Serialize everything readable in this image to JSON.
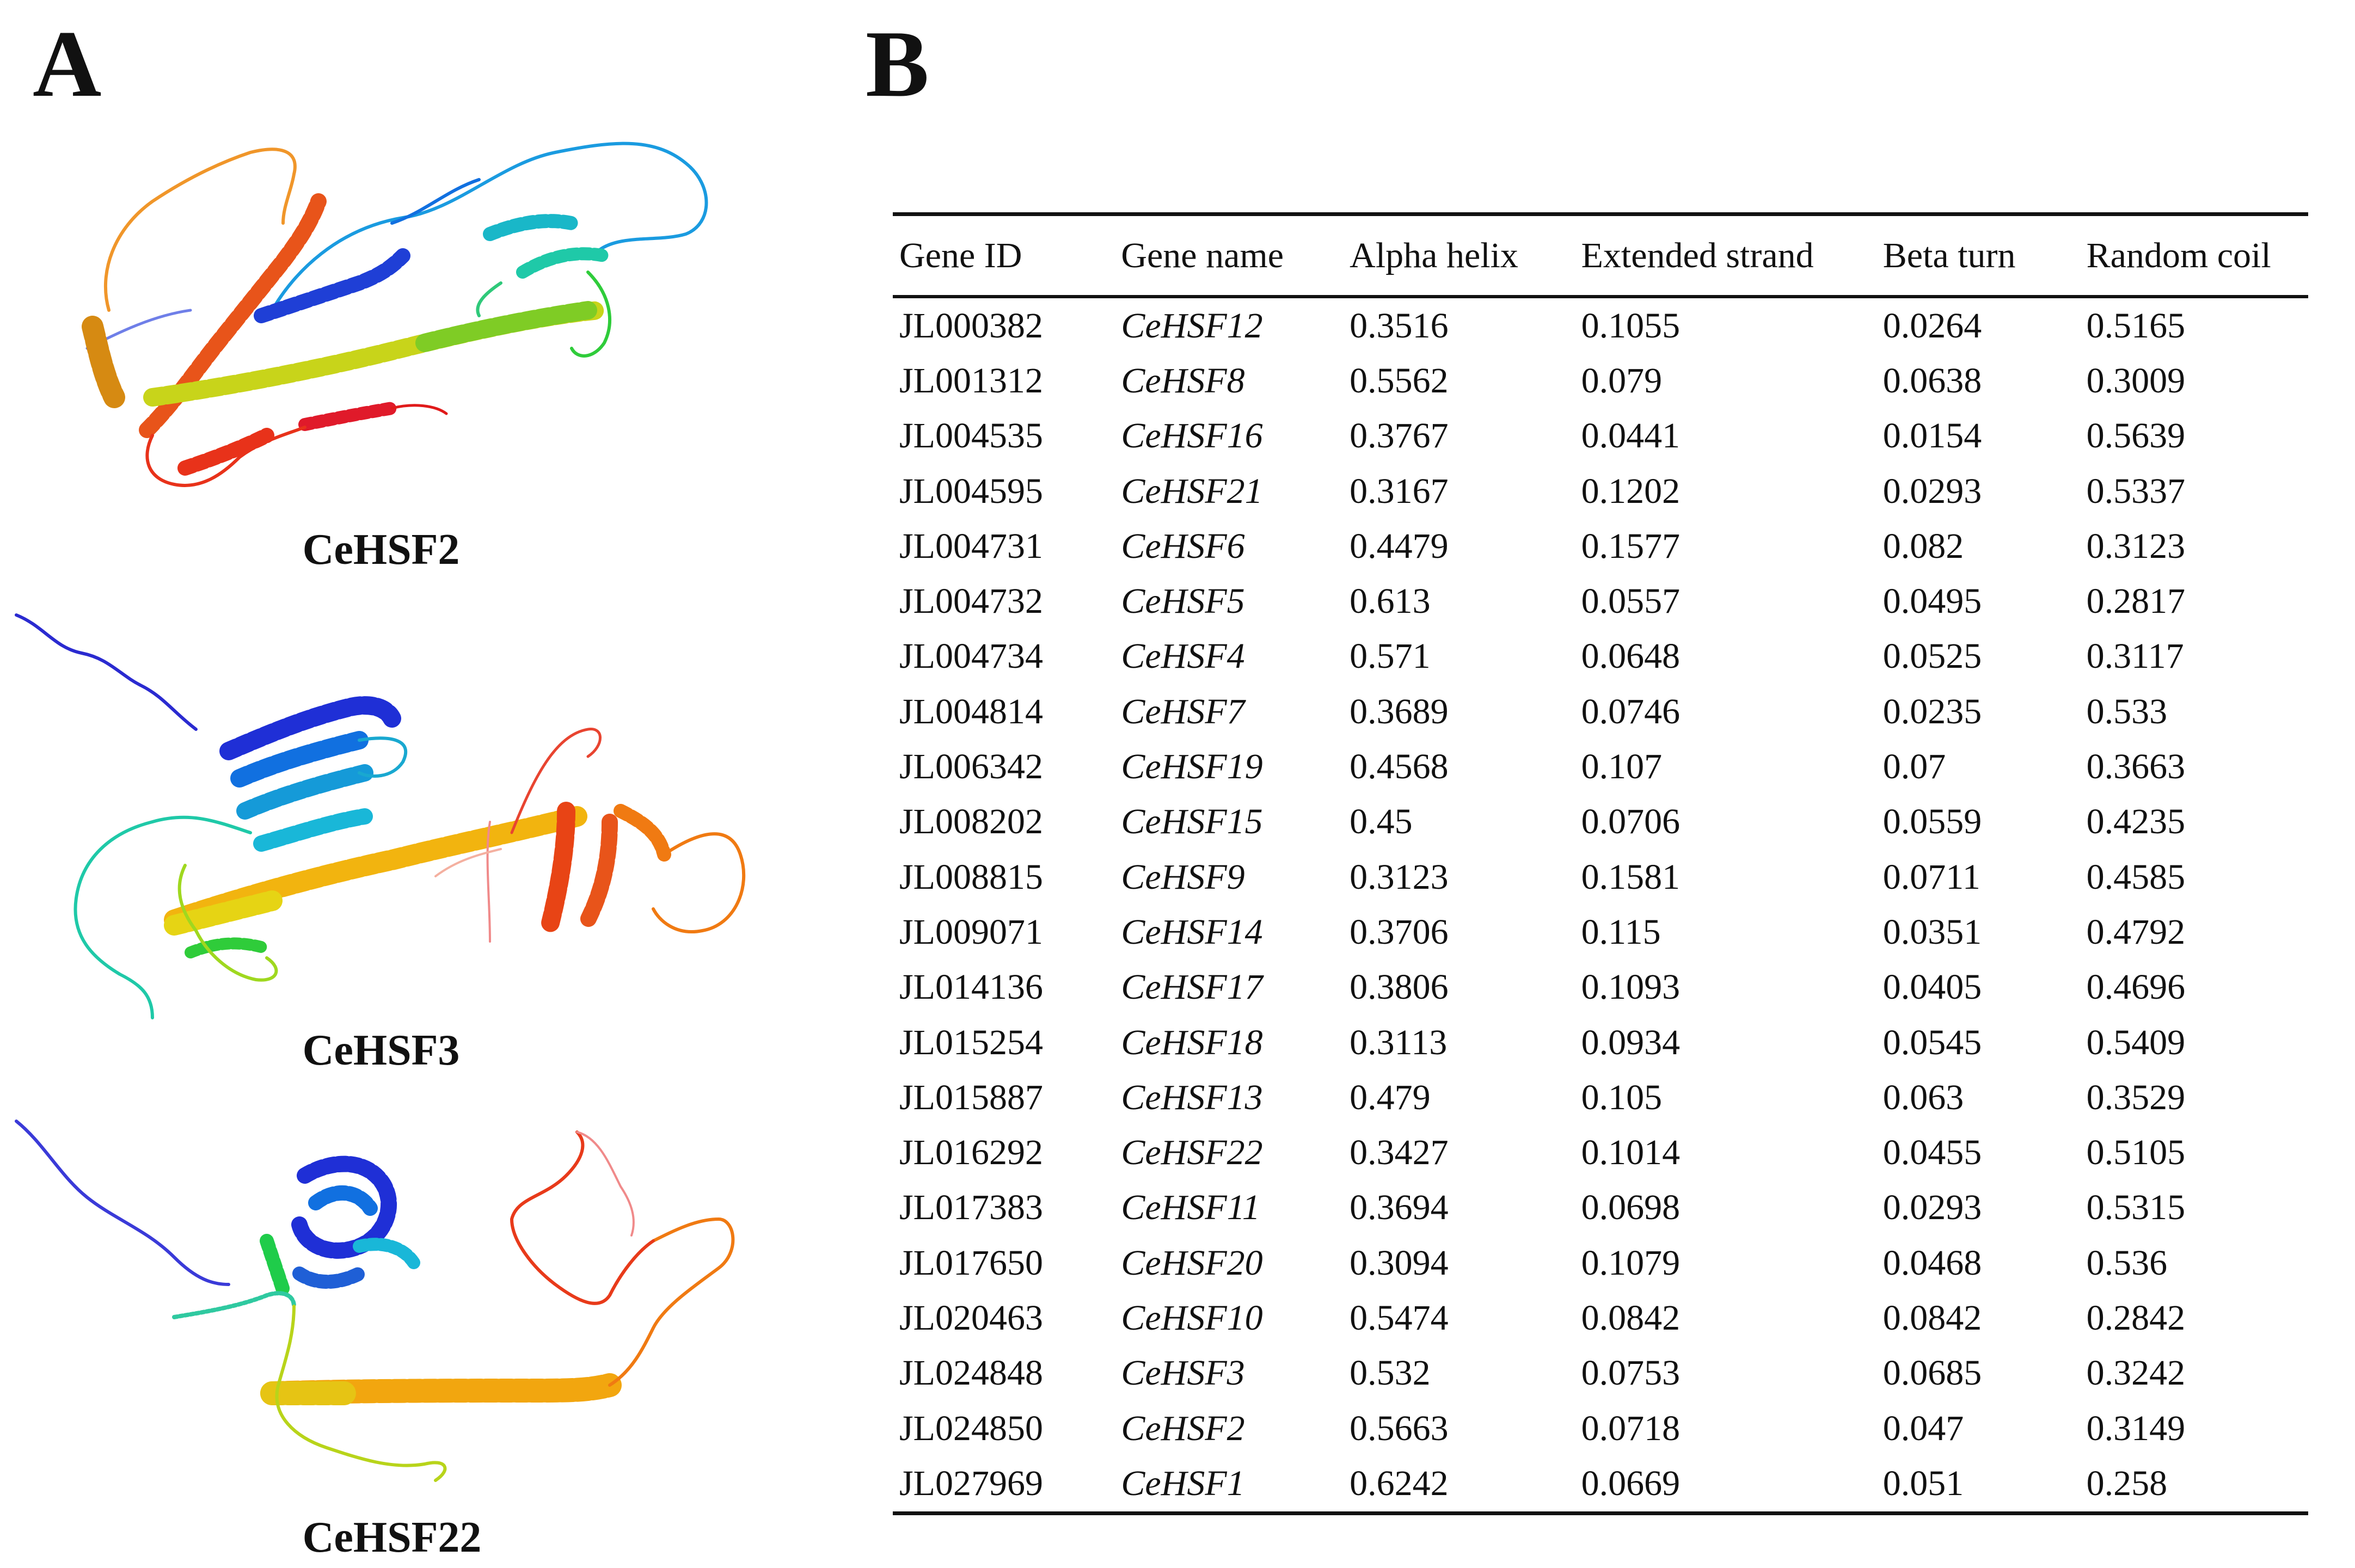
{
  "panel_a": {
    "label": "A",
    "structures": [
      {
        "caption": "CeHSF2"
      },
      {
        "caption": "CeHSF3"
      },
      {
        "caption": "CeHSF22"
      }
    ]
  },
  "panel_b": {
    "label": "B",
    "table": {
      "headers": [
        "Gene ID",
        "Gene name",
        "Alpha helix",
        "Extended strand",
        "Beta turn",
        "Random coil"
      ],
      "rows": [
        [
          "JL000382",
          "CeHSF12",
          "0.3516",
          "0.1055",
          "0.0264",
          "0.5165"
        ],
        [
          "JL001312",
          "CeHSF8",
          "0.5562",
          "0.079",
          "0.0638",
          "0.3009"
        ],
        [
          "JL004535",
          "CeHSF16",
          "0.3767",
          "0.0441",
          "0.0154",
          "0.5639"
        ],
        [
          "JL004595",
          "CeHSF21",
          "0.3167",
          "0.1202",
          "0.0293",
          "0.5337"
        ],
        [
          "JL004731",
          "CeHSF6",
          "0.4479",
          "0.1577",
          "0.082",
          "0.3123"
        ],
        [
          "JL004732",
          "CeHSF5",
          "0.613",
          "0.0557",
          "0.0495",
          "0.2817"
        ],
        [
          "JL004734",
          "CeHSF4",
          "0.571",
          "0.0648",
          "0.0525",
          "0.3117"
        ],
        [
          "JL004814",
          "CeHSF7",
          "0.3689",
          "0.0746",
          "0.0235",
          "0.533"
        ],
        [
          "JL006342",
          "CeHSF19",
          "0.4568",
          "0.107",
          "0.07",
          "0.3663"
        ],
        [
          "JL008202",
          "CeHSF15",
          "0.45",
          "0.0706",
          "0.0559",
          "0.4235"
        ],
        [
          "JL008815",
          "CeHSF9",
          "0.3123",
          "0.1581",
          "0.0711",
          "0.4585"
        ],
        [
          "JL009071",
          "CeHSF14",
          "0.3706",
          "0.115",
          "0.0351",
          "0.4792"
        ],
        [
          "JL014136",
          "CeHSF17",
          "0.3806",
          "0.1093",
          "0.0405",
          "0.4696"
        ],
        [
          "JL015254",
          "CeHSF18",
          "0.3113",
          "0.0934",
          "0.0545",
          "0.5409"
        ],
        [
          "JL015887",
          "CeHSF13",
          "0.479",
          "0.105",
          "0.063",
          "0.3529"
        ],
        [
          "JL016292",
          "CeHSF22",
          "0.3427",
          "0.1014",
          "0.0455",
          "0.5105"
        ],
        [
          "JL017383",
          "CeHSF11",
          "0.3694",
          "0.0698",
          "0.0293",
          "0.5315"
        ],
        [
          "JL017650",
          "CeHSF20",
          "0.3094",
          "0.1079",
          "0.0468",
          "0.536"
        ],
        [
          "JL020463",
          "CeHSF10",
          "0.5474",
          "0.0842",
          "0.0842",
          "0.2842"
        ],
        [
          "JL024848",
          "CeHSF3",
          "0.532",
          "0.0753",
          "0.0685",
          "0.3242"
        ],
        [
          "JL024850",
          "CeHSF2",
          "0.5663",
          "0.0718",
          "0.047",
          "0.3149"
        ],
        [
          "JL027969",
          "CeHSF1",
          "0.6242",
          "0.0669",
          "0.051",
          "0.258"
        ]
      ]
    }
  },
  "colors": {
    "rainbow": [
      "#1f2fd6",
      "#1170e0",
      "#19b7d8",
      "#1fc9a8",
      "#2fcc3a",
      "#9fd81f",
      "#e6d414",
      "#f2a60f",
      "#f07a12",
      "#e84415",
      "#e01a1a"
    ],
    "faded_coil": "#f08a8a"
  }
}
